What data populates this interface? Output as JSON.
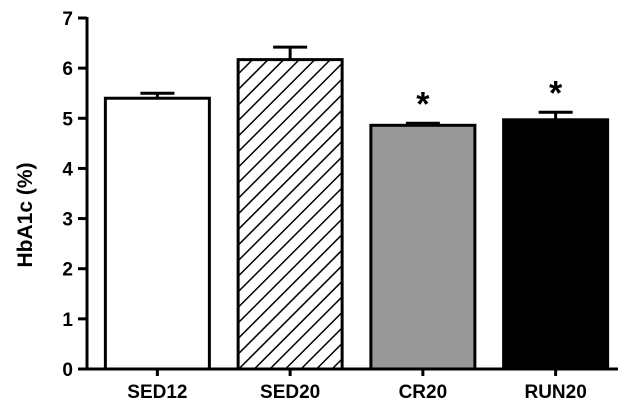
{
  "chart_data": {
    "type": "bar",
    "title": "",
    "xlabel": "",
    "ylabel": "HbA1c (%)",
    "ylim": [
      0,
      7
    ],
    "yticks": [
      0,
      1,
      2,
      3,
      4,
      5,
      6,
      7
    ],
    "categories": [
      "SED12",
      "SED20",
      "CR20",
      "RUN20"
    ],
    "values": [
      5.4,
      6.17,
      4.86,
      4.97
    ],
    "errors": [
      0.1,
      0.25,
      0.04,
      0.15
    ],
    "fills": [
      "white",
      "hatched",
      "gray",
      "black"
    ],
    "significance": [
      "",
      "",
      "*",
      "*"
    ],
    "grid": false,
    "legend": "none"
  },
  "colors": {
    "axis": "#000000",
    "white_bar": "#ffffff",
    "gray_bar": "#999999",
    "black_bar": "#000000"
  }
}
